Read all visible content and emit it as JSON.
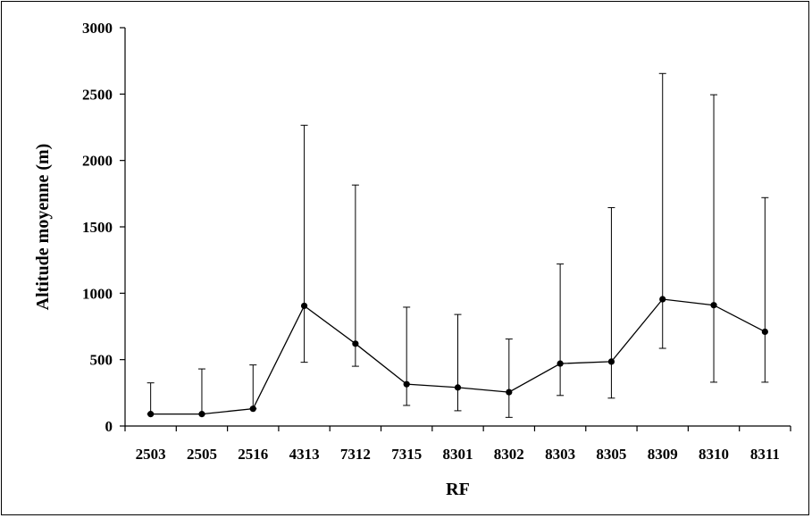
{
  "chart_data": {
    "type": "line",
    "title": "",
    "xlabel": "RF",
    "ylabel": "Altitude moyenne (m)",
    "categories": [
      "2503",
      "2505",
      "2516",
      "4313",
      "7312",
      "7315",
      "8301",
      "8302",
      "8303",
      "8305",
      "8309",
      "8310",
      "8311"
    ],
    "series": [
      {
        "values": [
          90,
          90,
          130,
          905,
          620,
          315,
          290,
          255,
          470,
          485,
          955,
          910,
          710
        ],
        "error_low": [
          90,
          90,
          130,
          480,
          450,
          155,
          115,
          65,
          230,
          210,
          585,
          330,
          330
        ],
        "error_high": [
          325,
          430,
          460,
          2265,
          1815,
          895,
          840,
          655,
          1220,
          1645,
          2655,
          2495,
          1720
        ],
        "color": "#000000"
      }
    ],
    "ylim": [
      0,
      3000
    ],
    "yticks": [
      0,
      500,
      1000,
      1500,
      2000,
      2500,
      3000
    ],
    "grid": false,
    "legend": "none"
  }
}
